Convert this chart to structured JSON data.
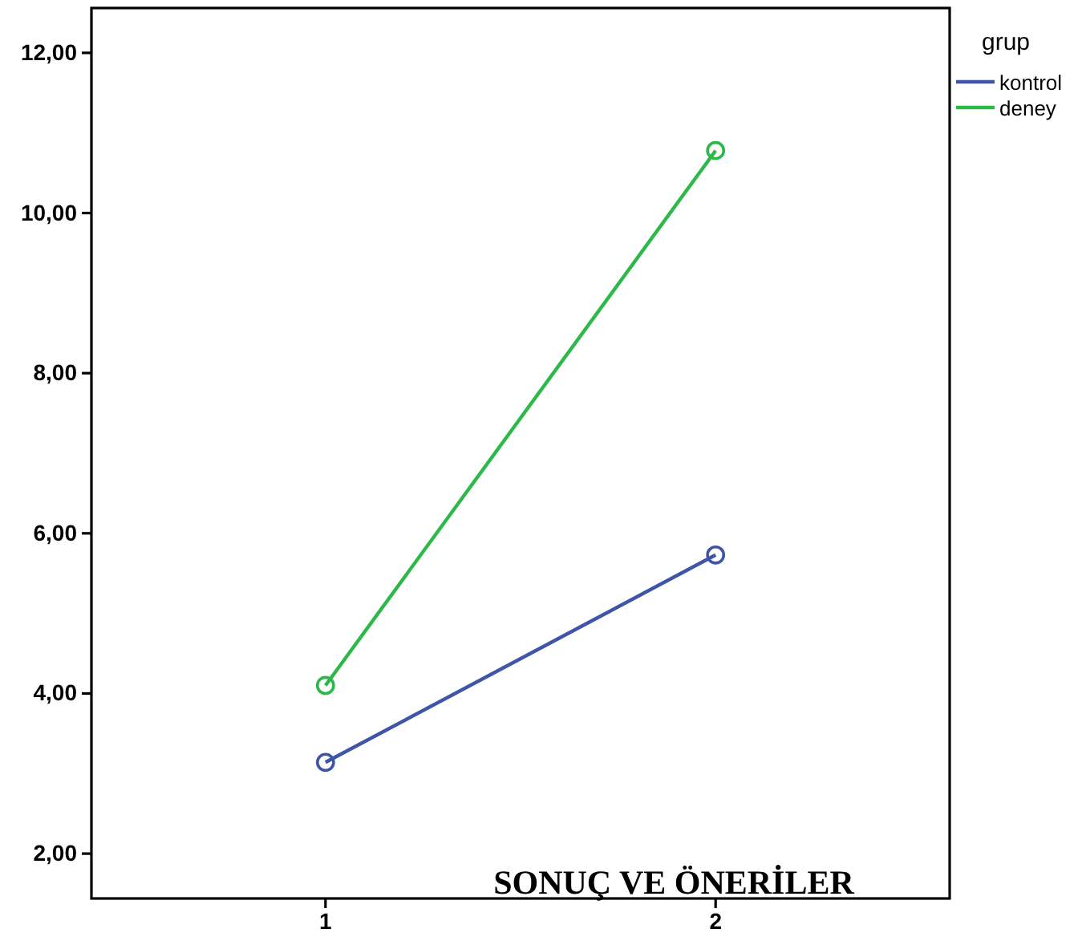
{
  "chart_data": {
    "type": "line",
    "categories": [
      "1",
      "2"
    ],
    "series": [
      {
        "name": "kontrol",
        "color": "#3e55a8",
        "values": [
          3.14,
          5.73
        ]
      },
      {
        "name": "deney",
        "color": "#2db84a",
        "values": [
          4.1,
          10.78
        ]
      }
    ],
    "ylim": [
      1.44,
      12.56
    ],
    "yticks": [
      {
        "value": 2,
        "label": "2,00"
      },
      {
        "value": 4,
        "label": "4,00"
      },
      {
        "value": 6,
        "label": "6,00"
      },
      {
        "value": 8,
        "label": "8,00"
      },
      {
        "value": 10,
        "label": "10,00"
      },
      {
        "value": 12,
        "label": "12,00"
      }
    ],
    "legend_title": "grup",
    "legend": "right",
    "marker": "circle",
    "grid": false,
    "annotations": [
      "SONUÇ VE ÖNERİLER"
    ]
  }
}
